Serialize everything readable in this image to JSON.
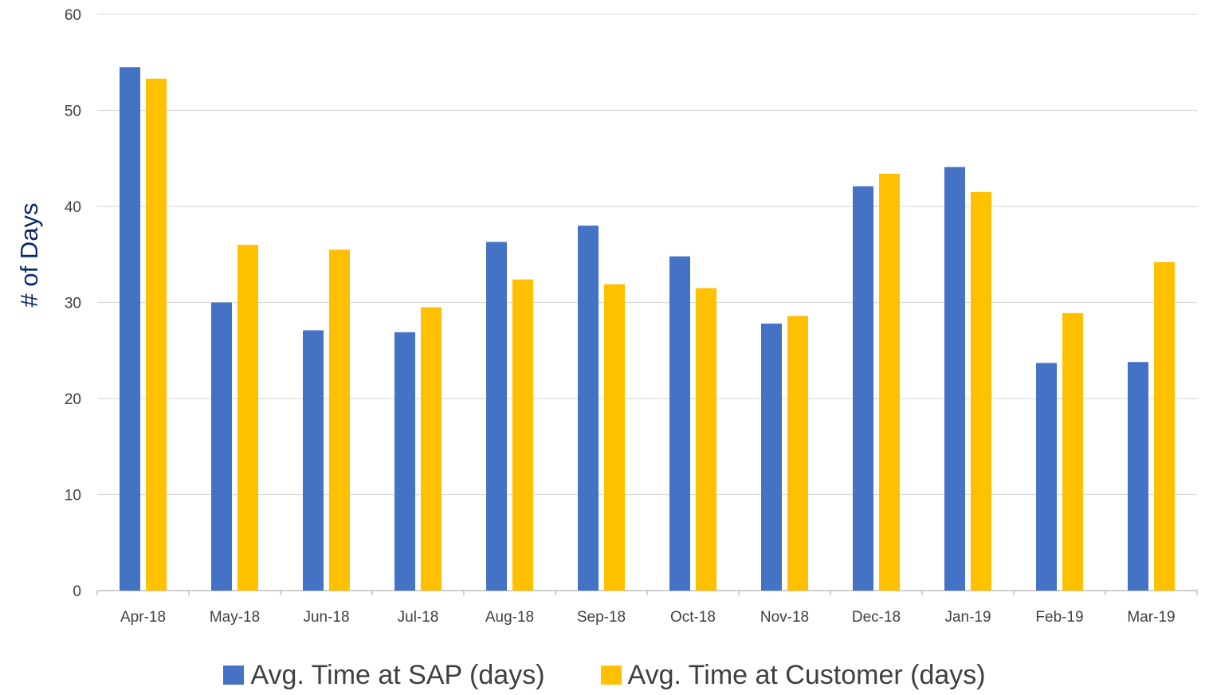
{
  "chart_data": {
    "type": "bar",
    "title": "",
    "xlabel": "",
    "ylabel": "# of Days",
    "ylim": [
      0,
      60
    ],
    "yticks": [
      0,
      10,
      20,
      30,
      40,
      50,
      60
    ],
    "grid": true,
    "legend_position": "bottom",
    "categories": [
      "Apr-18",
      "May-18",
      "Jun-18",
      "Jul-18",
      "Aug-18",
      "Sep-18",
      "Oct-18",
      "Nov-18",
      "Dec-18",
      "Jan-19",
      "Feb-19",
      "Mar-19"
    ],
    "series": [
      {
        "name": "Avg. Time at SAP (days)",
        "color": "#4472c4",
        "values": [
          54.5,
          30.0,
          27.1,
          26.9,
          36.3,
          38.0,
          34.8,
          27.8,
          42.1,
          44.1,
          23.7,
          23.8
        ]
      },
      {
        "name": "Avg. Time at Customer (days)",
        "color": "#ffc000",
        "values": [
          53.3,
          36.0,
          35.5,
          29.5,
          32.4,
          31.9,
          31.5,
          28.6,
          43.4,
          41.5,
          28.9,
          34.2
        ]
      }
    ]
  }
}
